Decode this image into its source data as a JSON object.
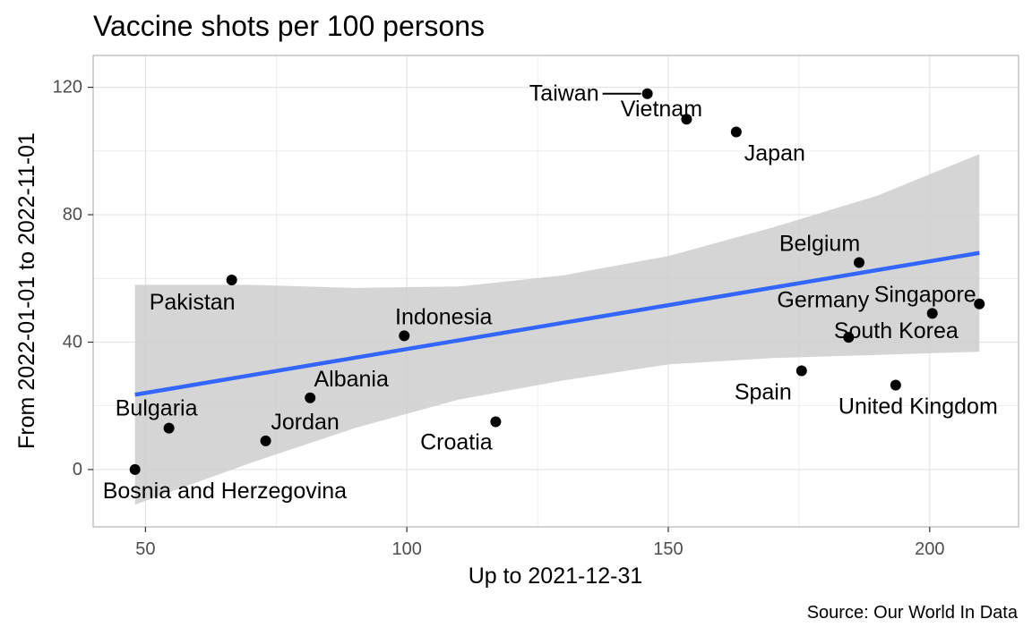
{
  "chart_data": {
    "type": "scatter",
    "title": "Vaccine shots per 100 persons",
    "xlabel": "Up to 2021-12-31",
    "ylabel": "From 2022-01-01 to 2022-11-01",
    "caption": "Source: Our World In Data",
    "xlim": [
      40,
      217
    ],
    "ylim": [
      -18,
      130
    ],
    "x_ticks": [
      50,
      100,
      150,
      200
    ],
    "y_ticks": [
      0,
      40,
      80,
      120
    ],
    "grid": true,
    "colors": {
      "points": "#000000",
      "trend_line": "#3366FF",
      "confidence_band": "#cccccc",
      "grid": "#e5e5e5",
      "panel_border": "#b3b3b3"
    },
    "points": [
      {
        "label": "Bosnia and Herzegovina",
        "x": 48,
        "y": 0
      },
      {
        "label": "Bulgaria",
        "x": 54.5,
        "y": 13
      },
      {
        "label": "Pakistan",
        "x": 66.5,
        "y": 59.5
      },
      {
        "label": "Jordan",
        "x": 73,
        "y": 9
      },
      {
        "label": "Albania",
        "x": 81.5,
        "y": 22.5
      },
      {
        "label": "Indonesia",
        "x": 99.5,
        "y": 42
      },
      {
        "label": "Croatia",
        "x": 117,
        "y": 15
      },
      {
        "label": "Taiwan",
        "x": 146,
        "y": 118
      },
      {
        "label": "Vietnam",
        "x": 153.5,
        "y": 110
      },
      {
        "label": "Japan",
        "x": 163,
        "y": 106
      },
      {
        "label": "Spain",
        "x": 175.5,
        "y": 31
      },
      {
        "label": "South Korea",
        "x": 184.5,
        "y": 41.5
      },
      {
        "label": "Belgium",
        "x": 186.5,
        "y": 65
      },
      {
        "label": "United Kingdom",
        "x": 193.5,
        "y": 26.5
      },
      {
        "label": "Singapore",
        "x": 200.5,
        "y": 49
      },
      {
        "label": "Germany",
        "x": 209.5,
        "y": 52
      }
    ],
    "trend_line": {
      "x": [
        48,
        209.5
      ],
      "y": [
        23.5,
        68
      ]
    },
    "confidence_band": {
      "x": [
        48,
        70,
        90,
        110,
        130,
        150,
        170,
        190,
        209.5
      ],
      "upper": [
        58,
        58,
        57,
        57.5,
        61,
        67,
        76,
        86,
        99
      ],
      "lower": [
        -11,
        2,
        13,
        22,
        28,
        33,
        35,
        36,
        37
      ]
    }
  }
}
